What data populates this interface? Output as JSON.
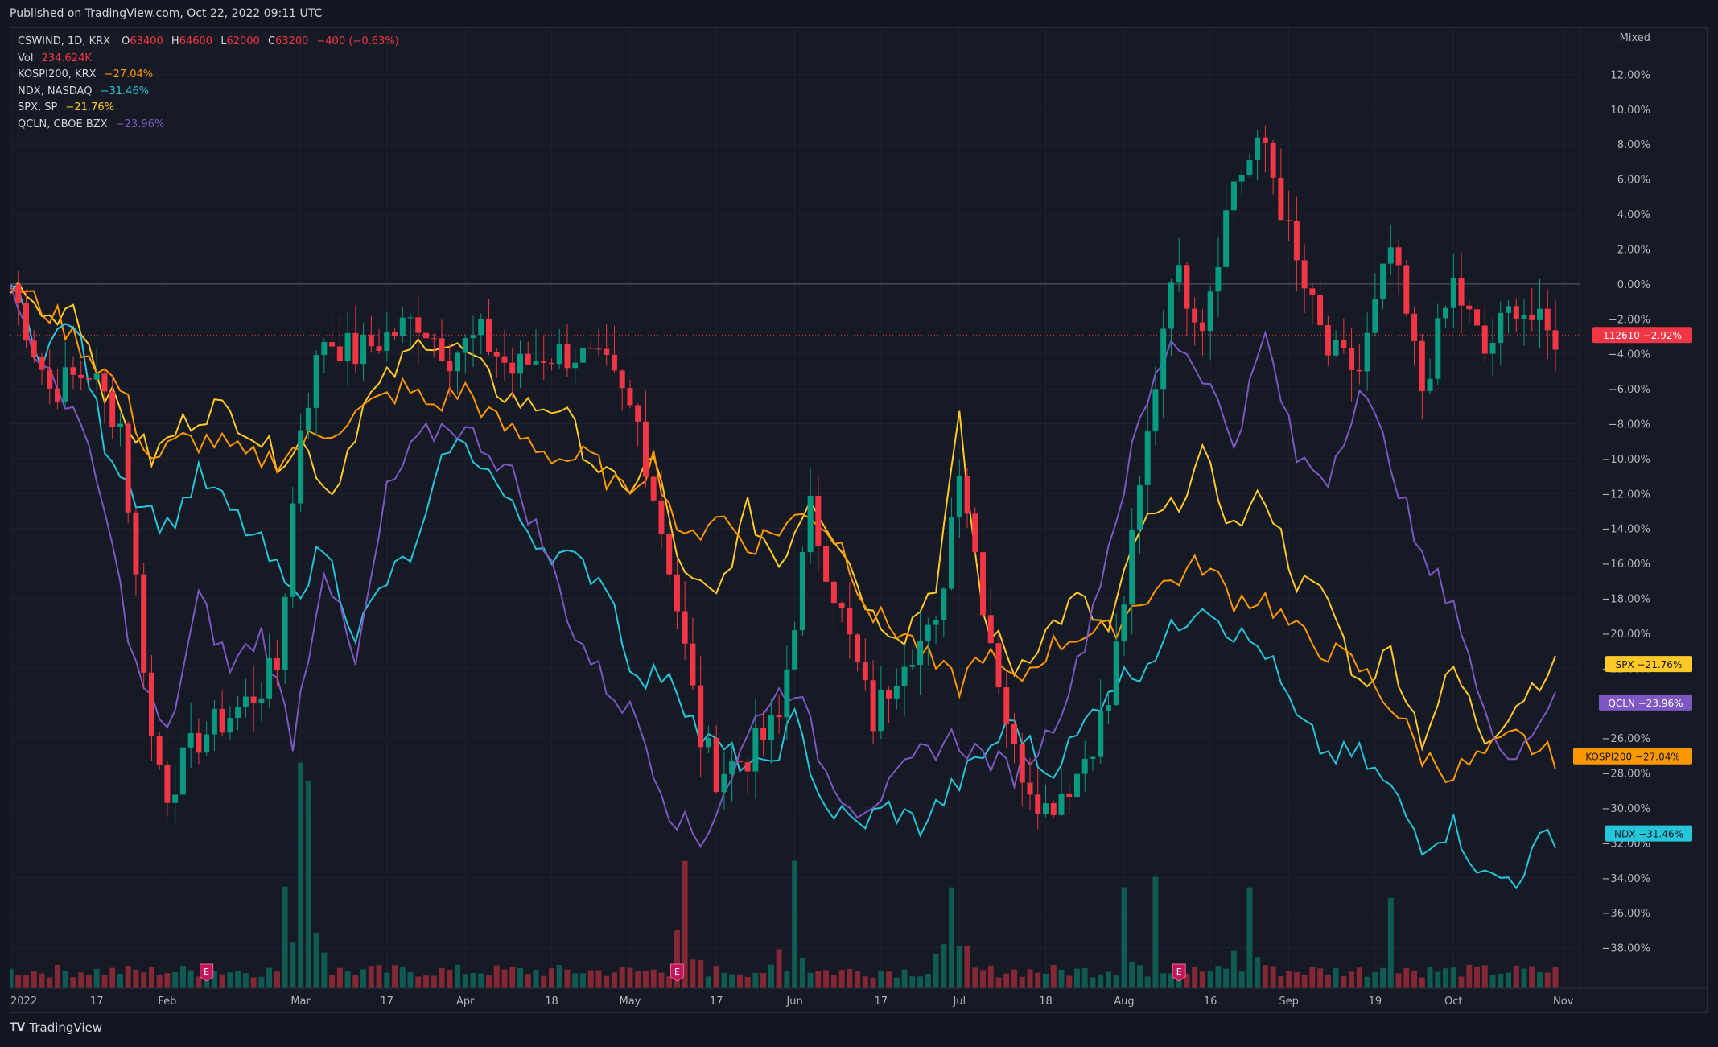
{
  "header": {
    "published": "Published on TradingView.com, Oct 22, 2022 09:11 UTC"
  },
  "legend": {
    "main": {
      "symbol": "CSWIND, 1D, KRX",
      "o_label": "O",
      "o": "63400",
      "h_label": "H",
      "h": "64600",
      "l_label": "L",
      "l": "62000",
      "c_label": "C",
      "c": "63200",
      "change": "−400 (−0.63%)"
    },
    "vol": {
      "label": "Vol",
      "value": "234.624K"
    },
    "comparisons": [
      {
        "symbol": "KOSPI200, KRX",
        "value": "−27.04%",
        "color": "#ff9800"
      },
      {
        "symbol": "NDX, NASDAQ",
        "value": "−31.46%",
        "color": "#26c6da"
      },
      {
        "symbol": "SPX, SP",
        "value": "−21.76%",
        "color": "#ffca28"
      },
      {
        "symbol": "QCLN, CBOE BZX",
        "value": "−23.96%",
        "color": "#7e57c2"
      }
    ]
  },
  "footer": {
    "brand": "TradingView",
    "logo": "TV"
  },
  "chart_data": {
    "type": "line",
    "scale_mode": "Mixed",
    "y_unit": "percent",
    "ylim": [
      -40,
      14
    ],
    "yticks": [
      "12.00%",
      "10.00%",
      "8.00%",
      "6.00%",
      "4.00%",
      "2.00%",
      "0.00%",
      "−2.00%",
      "−4.00%",
      "−6.00%",
      "−8.00%",
      "−10.00%",
      "−12.00%",
      "−14.00%",
      "−16.00%",
      "−18.00%",
      "−20.00%",
      "−22.00%",
      "−24.00%",
      "−26.00%",
      "−28.00%",
      "−30.00%",
      "−32.00%",
      "−34.00%",
      "−36.00%",
      "−38.00%"
    ],
    "ytick_values": [
      12,
      10,
      8,
      6,
      4,
      2,
      0,
      -2,
      -4,
      -6,
      -8,
      -10,
      -12,
      -14,
      -16,
      -18,
      -20,
      -22,
      -24,
      -26,
      -28,
      -30,
      -32,
      -34,
      -36,
      -38
    ],
    "xticks": [
      "2022",
      "17",
      "Feb",
      "Mar",
      "17",
      "Apr",
      "18",
      "May",
      "17",
      "Jun",
      "17",
      "Jul",
      "18",
      "Aug",
      "16",
      "Sep",
      "19",
      "Oct",
      "Nov"
    ],
    "xtick_index": [
      0,
      11,
      20,
      37,
      48,
      58,
      69,
      79,
      90,
      100,
      111,
      121,
      132,
      142,
      153,
      163,
      174,
      184,
      198
    ],
    "n_bars": 198,
    "earnings_markers_index": [
      25,
      85,
      149
    ],
    "earnings_label": "E",
    "price_label": {
      "price": "112610",
      "pct": "−2.92%",
      "value": -2.92,
      "color": "#f23645"
    },
    "series": [
      {
        "name": "SPX",
        "value_label": "−21.76%",
        "color": "#ffca28",
        "knots": [
          [
            0,
            0
          ],
          [
            5,
            -2
          ],
          [
            8,
            -1
          ],
          [
            12,
            -6
          ],
          [
            18,
            -10
          ],
          [
            22,
            -8
          ],
          [
            26,
            -7
          ],
          [
            30,
            -8
          ],
          [
            34,
            -10
          ],
          [
            37,
            -9
          ],
          [
            41,
            -12
          ],
          [
            45,
            -7
          ],
          [
            49,
            -5
          ],
          [
            53,
            -3
          ],
          [
            58,
            -4
          ],
          [
            62,
            -6
          ],
          [
            66,
            -7
          ],
          [
            70,
            -7
          ],
          [
            74,
            -10
          ],
          [
            78,
            -12
          ],
          [
            82,
            -10
          ],
          [
            86,
            -17
          ],
          [
            90,
            -18
          ],
          [
            94,
            -13
          ],
          [
            98,
            -16
          ],
          [
            102,
            -12
          ],
          [
            106,
            -15
          ],
          [
            110,
            -19
          ],
          [
            114,
            -20
          ],
          [
            118,
            -17
          ],
          [
            121,
            -8
          ],
          [
            124,
            -19
          ],
          [
            128,
            -22
          ],
          [
            132,
            -20
          ],
          [
            136,
            -18
          ],
          [
            140,
            -20
          ],
          [
            144,
            -14
          ],
          [
            148,
            -13
          ],
          [
            152,
            -10
          ],
          [
            156,
            -14
          ],
          [
            160,
            -12
          ],
          [
            164,
            -17
          ],
          [
            168,
            -18
          ],
          [
            172,
            -23
          ],
          [
            176,
            -21
          ],
          [
            180,
            -26
          ],
          [
            184,
            -22
          ],
          [
            188,
            -26
          ],
          [
            192,
            -24
          ],
          [
            196,
            -22
          ]
        ]
      },
      {
        "name": "KOSPI200",
        "value_label": "−27.04%",
        "color": "#ff9800",
        "knots": [
          [
            0,
            0
          ],
          [
            6,
            -2
          ],
          [
            10,
            -4
          ],
          [
            14,
            -6
          ],
          [
            18,
            -10
          ],
          [
            22,
            -9
          ],
          [
            26,
            -9
          ],
          [
            30,
            -10
          ],
          [
            34,
            -10
          ],
          [
            38,
            -9
          ],
          [
            42,
            -8
          ],
          [
            46,
            -7
          ],
          [
            50,
            -6
          ],
          [
            54,
            -7
          ],
          [
            58,
            -6
          ],
          [
            62,
            -8
          ],
          [
            66,
            -9
          ],
          [
            70,
            -10
          ],
          [
            74,
            -10
          ],
          [
            78,
            -12
          ],
          [
            82,
            -10
          ],
          [
            86,
            -15
          ],
          [
            90,
            -13
          ],
          [
            94,
            -15
          ],
          [
            98,
            -14
          ],
          [
            102,
            -13
          ],
          [
            106,
            -15
          ],
          [
            110,
            -19
          ],
          [
            114,
            -20
          ],
          [
            118,
            -22
          ],
          [
            121,
            -23
          ],
          [
            124,
            -21
          ],
          [
            128,
            -23
          ],
          [
            132,
            -21
          ],
          [
            136,
            -20
          ],
          [
            140,
            -20
          ],
          [
            144,
            -18
          ],
          [
            148,
            -17
          ],
          [
            152,
            -16
          ],
          [
            156,
            -18
          ],
          [
            160,
            -18
          ],
          [
            164,
            -20
          ],
          [
            168,
            -21
          ],
          [
            172,
            -22
          ],
          [
            176,
            -24
          ],
          [
            180,
            -27
          ],
          [
            184,
            -28
          ],
          [
            188,
            -27
          ],
          [
            192,
            -26
          ],
          [
            196,
            -27
          ]
        ]
      },
      {
        "name": "NDX",
        "value_label": "−31.46%",
        "color": "#26c6da",
        "knots": [
          [
            0,
            0
          ],
          [
            4,
            -4
          ],
          [
            8,
            -2
          ],
          [
            12,
            -9
          ],
          [
            16,
            -12
          ],
          [
            20,
            -14
          ],
          [
            24,
            -11
          ],
          [
            28,
            -13
          ],
          [
            32,
            -15
          ],
          [
            36,
            -18
          ],
          [
            40,
            -15
          ],
          [
            44,
            -20
          ],
          [
            48,
            -17
          ],
          [
            52,
            -15
          ],
          [
            56,
            -9
          ],
          [
            60,
            -10
          ],
          [
            64,
            -13
          ],
          [
            68,
            -15
          ],
          [
            72,
            -16
          ],
          [
            76,
            -17
          ],
          [
            80,
            -23
          ],
          [
            84,
            -22
          ],
          [
            88,
            -26
          ],
          [
            92,
            -27
          ],
          [
            96,
            -28
          ],
          [
            100,
            -25
          ],
          [
            104,
            -30
          ],
          [
            108,
            -31
          ],
          [
            112,
            -30
          ],
          [
            116,
            -31
          ],
          [
            120,
            -29
          ],
          [
            124,
            -27
          ],
          [
            128,
            -25
          ],
          [
            132,
            -28
          ],
          [
            136,
            -26
          ],
          [
            140,
            -23
          ],
          [
            144,
            -22
          ],
          [
            148,
            -20
          ],
          [
            152,
            -18
          ],
          [
            156,
            -20
          ],
          [
            160,
            -21
          ],
          [
            164,
            -25
          ],
          [
            168,
            -27
          ],
          [
            172,
            -27
          ],
          [
            176,
            -29
          ],
          [
            180,
            -32
          ],
          [
            184,
            -31
          ],
          [
            188,
            -34
          ],
          [
            192,
            -34
          ],
          [
            196,
            -31.5
          ]
        ]
      },
      {
        "name": "QCLN",
        "value_label": "−23.96%",
        "color": "#7e57c2",
        "knots": [
          [
            0,
            0
          ],
          [
            4,
            -5
          ],
          [
            8,
            -7
          ],
          [
            12,
            -13
          ],
          [
            16,
            -22
          ],
          [
            20,
            -26
          ],
          [
            24,
            -18
          ],
          [
            28,
            -22
          ],
          [
            32,
            -20
          ],
          [
            36,
            -26
          ],
          [
            40,
            -16
          ],
          [
            44,
            -22
          ],
          [
            48,
            -12
          ],
          [
            52,
            -9
          ],
          [
            56,
            -8
          ],
          [
            60,
            -9
          ],
          [
            64,
            -11
          ],
          [
            68,
            -15
          ],
          [
            72,
            -20
          ],
          [
            76,
            -23
          ],
          [
            80,
            -25
          ],
          [
            84,
            -30
          ],
          [
            88,
            -32
          ],
          [
            92,
            -28
          ],
          [
            96,
            -24
          ],
          [
            100,
            -23
          ],
          [
            104,
            -28
          ],
          [
            108,
            -30
          ],
          [
            112,
            -29
          ],
          [
            116,
            -27
          ],
          [
            120,
            -26
          ],
          [
            124,
            -27
          ],
          [
            128,
            -28
          ],
          [
            132,
            -26
          ],
          [
            136,
            -22
          ],
          [
            140,
            -15
          ],
          [
            144,
            -8
          ],
          [
            148,
            -3
          ],
          [
            152,
            -5
          ],
          [
            156,
            -9
          ],
          [
            160,
            -3
          ],
          [
            164,
            -10
          ],
          [
            168,
            -11
          ],
          [
            172,
            -6
          ],
          [
            176,
            -10
          ],
          [
            180,
            -16
          ],
          [
            184,
            -18
          ],
          [
            188,
            -25
          ],
          [
            192,
            -27
          ],
          [
            196,
            -24
          ]
        ]
      },
      {
        "name": "CSWIND",
        "type": "candlestick",
        "color_up": "#089981",
        "color_down": "#f23645",
        "knots": [
          [
            0,
            0
          ],
          [
            5,
            -6
          ],
          [
            10,
            -5
          ],
          [
            14,
            -8
          ],
          [
            18,
            -26
          ],
          [
            20,
            -29
          ],
          [
            24,
            -26
          ],
          [
            30,
            -24
          ],
          [
            34,
            -22
          ],
          [
            37,
            -8
          ],
          [
            40,
            -3
          ],
          [
            44,
            -4
          ],
          [
            48,
            -3
          ],
          [
            52,
            -2
          ],
          [
            56,
            -4
          ],
          [
            60,
            -3
          ],
          [
            64,
            -5
          ],
          [
            68,
            -4
          ],
          [
            72,
            -4
          ],
          [
            76,
            -5
          ],
          [
            80,
            -8
          ],
          [
            84,
            -16
          ],
          [
            88,
            -26
          ],
          [
            90,
            -28
          ],
          [
            94,
            -27
          ],
          [
            98,
            -25
          ],
          [
            102,
            -13
          ],
          [
            106,
            -19
          ],
          [
            110,
            -25
          ],
          [
            114,
            -21
          ],
          [
            118,
            -20
          ],
          [
            121,
            -10
          ],
          [
            124,
            -18
          ],
          [
            128,
            -27
          ],
          [
            132,
            -30
          ],
          [
            136,
            -28
          ],
          [
            140,
            -24
          ],
          [
            144,
            -12
          ],
          [
            148,
            1
          ],
          [
            152,
            -2
          ],
          [
            156,
            6
          ],
          [
            160,
            8
          ],
          [
            164,
            1
          ],
          [
            168,
            -4
          ],
          [
            172,
            -5
          ],
          [
            176,
            2
          ],
          [
            180,
            -6
          ],
          [
            184,
            0
          ],
          [
            188,
            -4
          ],
          [
            192,
            -1
          ],
          [
            196,
            -3
          ]
        ]
      },
      {
        "name": "Vol",
        "type": "volume",
        "baseline_frac": 0.04,
        "spikes": [
          [
            37,
            0.85
          ],
          [
            38,
            0.78
          ],
          [
            86,
            0.48
          ],
          [
            100,
            0.48
          ],
          [
            120,
            0.38
          ],
          [
            142,
            0.38
          ],
          [
            146,
            0.42
          ],
          [
            158,
            0.38
          ],
          [
            176,
            0.34
          ]
        ]
      }
    ]
  }
}
